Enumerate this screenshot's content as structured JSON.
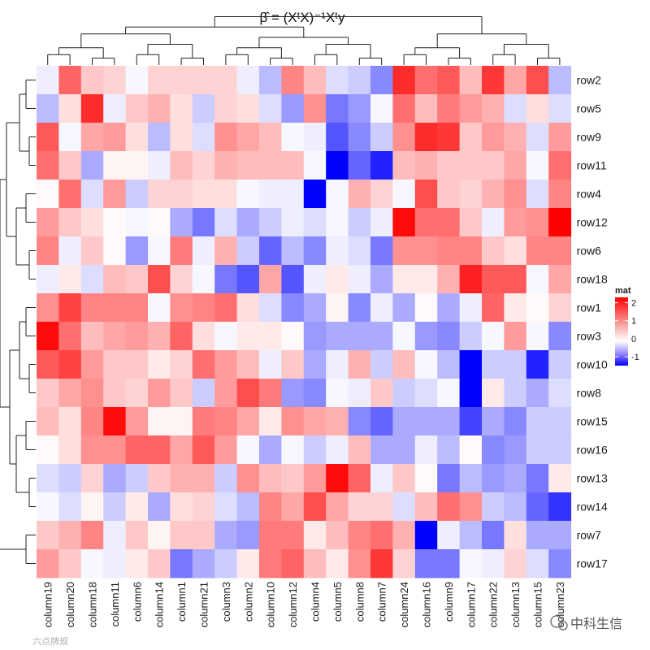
{
  "chart_data": {
    "type": "heatmap",
    "title": "β̂ = (XᵗX)⁻¹Xᵗy",
    "rows": [
      "row2",
      "row5",
      "row9",
      "row11",
      "row4",
      "row12",
      "row6",
      "row18",
      "row1",
      "row3",
      "row10",
      "row8",
      "row15",
      "row16",
      "row13",
      "row14",
      "row7",
      "row17"
    ],
    "columns": [
      "column19",
      "column20",
      "column18",
      "column11",
      "column6",
      "column14",
      "column1",
      "column21",
      "column3",
      "column2",
      "column10",
      "column12",
      "column4",
      "column5",
      "column8",
      "column7",
      "column24",
      "column16",
      "column9",
      "column17",
      "column22",
      "column13",
      "column15",
      "column23"
    ],
    "values": [
      [
        -0.1,
        1.4,
        0.5,
        0.4,
        -0.05,
        0.4,
        0.4,
        0.4,
        0.4,
        -0.1,
        -0.4,
        1.1,
        0.6,
        -0.2,
        -0.3,
        -0.7,
        1.9,
        1.3,
        1.5,
        0.6,
        1.8,
        0.8,
        1.6,
        -0.4
      ],
      [
        -0.4,
        0.3,
        1.9,
        -0.1,
        0.5,
        0.7,
        0.3,
        -0.3,
        0.4,
        0.3,
        -0.2,
        -0.6,
        1.0,
        -0.8,
        -0.6,
        -0.05,
        1.3,
        0.6,
        1.2,
        0.9,
        0.7,
        -0.2,
        0.3,
        -0.2
      ],
      [
        1.5,
        -0.05,
        0.8,
        0.9,
        0.3,
        -0.4,
        0.3,
        -0.2,
        1.0,
        0.8,
        0.6,
        -0.05,
        -0.1,
        -1.0,
        -0.7,
        -0.3,
        1.0,
        1.9,
        1.8,
        0.5,
        0.9,
        0.7,
        -0.2,
        0.9
      ],
      [
        1.3,
        0.5,
        -0.5,
        0.1,
        0.1,
        -0.1,
        0.6,
        0.4,
        0.7,
        0.6,
        0.6,
        0.6,
        -0.05,
        -1.5,
        -0.9,
        -1.3,
        0.6,
        0.7,
        0.5,
        0.5,
        0.5,
        0.8,
        -0.05,
        1.3
      ],
      [
        0.05,
        1.3,
        -0.2,
        0.9,
        -0.3,
        0.4,
        0.4,
        0.3,
        0.3,
        -0.05,
        -0.1,
        -0.1,
        -1.5,
        -0.05,
        0.7,
        0.4,
        -0.05,
        1.6,
        0.5,
        0.4,
        0.7,
        1.0,
        -0.2,
        1.1
      ],
      [
        0.9,
        0.5,
        0.3,
        0.05,
        -0.05,
        0.05,
        -0.5,
        -0.8,
        -0.2,
        -0.5,
        -0.3,
        -0.1,
        -0.2,
        -0.05,
        -0.3,
        -0.1,
        2.2,
        1.3,
        1.3,
        0.5,
        -0.1,
        0.9,
        1.0,
        2.3
      ],
      [
        1.1,
        -0.1,
        0.5,
        0.05,
        -0.6,
        -0.05,
        1.2,
        -0.1,
        0.7,
        -0.3,
        -0.9,
        -0.4,
        -0.7,
        -0.1,
        -0.2,
        -0.8,
        1.0,
        1.0,
        1.1,
        1.1,
        0.5,
        0.3,
        1.1,
        1.1
      ],
      [
        -0.1,
        0.2,
        -0.2,
        0.6,
        0.5,
        1.6,
        0.4,
        -0.05,
        -0.8,
        -1.0,
        0.8,
        -1.0,
        -0.1,
        0.2,
        -0.1,
        -0.5,
        0.2,
        0.2,
        0.7,
        2.0,
        1.5,
        1.5,
        -0.05,
        0.8
      ],
      [
        1.0,
        1.7,
        1.1,
        1.1,
        1.1,
        -0.05,
        1.0,
        1.1,
        1.3,
        0.3,
        -0.2,
        -0.7,
        -0.5,
        0.1,
        -0.7,
        -0.1,
        -0.5,
        0.05,
        -0.5,
        -0.1,
        1.4,
        0.2,
        0.05,
        0.4
      ],
      [
        2.2,
        1.3,
        0.6,
        0.8,
        0.9,
        0.7,
        1.4,
        0.3,
        -0.05,
        0.2,
        0.2,
        0.05,
        -0.6,
        -0.5,
        -0.5,
        -0.5,
        -0.05,
        -0.6,
        -0.7,
        -0.3,
        -0.05,
        0.9,
        -0.05,
        -0.7
      ],
      [
        1.5,
        1.7,
        0.9,
        0.5,
        0.5,
        0.2,
        0.4,
        1.3,
        0.9,
        0.6,
        -0.1,
        0.5,
        -0.5,
        -0.1,
        0.7,
        -0.3,
        0.6,
        -0.05,
        -0.4,
        -1.5,
        -0.3,
        -0.3,
        -1.3,
        -0.3
      ],
      [
        0.5,
        0.8,
        1.0,
        0.5,
        0.4,
        0.9,
        0.5,
        -0.3,
        0.9,
        1.6,
        1.2,
        -0.6,
        -0.7,
        -0.05,
        -0.1,
        0.5,
        -0.3,
        -0.2,
        -0.05,
        -1.5,
        0.2,
        -0.3,
        -0.5,
        -0.2
      ],
      [
        0.6,
        0.3,
        1.1,
        2.2,
        0.9,
        0.1,
        0.1,
        1.2,
        1.1,
        0.8,
        0.2,
        1.0,
        0.8,
        0.7,
        -0.7,
        -0.9,
        -0.5,
        -0.5,
        -0.5,
        -1.1,
        -0.5,
        -0.7,
        -0.3,
        -0.3
      ],
      [
        0.05,
        0.3,
        1.0,
        1.0,
        1.4,
        1.4,
        0.8,
        1.5,
        0.9,
        -0.05,
        -0.5,
        -0.05,
        -0.3,
        -0.1,
        0.6,
        -0.5,
        -0.5,
        -0.1,
        -0.4,
        0.05,
        -0.7,
        -0.6,
        -0.3,
        -0.3
      ],
      [
        -0.2,
        -0.3,
        0.4,
        -0.5,
        -0.3,
        0.5,
        0.7,
        0.7,
        -0.3,
        1.0,
        0.6,
        0.5,
        0.9,
        2.2,
        1.4,
        -0.1,
        0.5,
        0.05,
        -0.8,
        -0.4,
        -0.6,
        -0.5,
        -0.8,
        0.2
      ],
      [
        -0.05,
        -0.2,
        0.1,
        -0.3,
        0.2,
        -0.5,
        0.3,
        0.4,
        -0.2,
        -0.4,
        1.1,
        0.8,
        1.6,
        0.8,
        0.4,
        0.4,
        -0.2,
        0.6,
        1.3,
        1.0,
        -0.3,
        -0.4,
        -0.9,
        -1.2
      ],
      [
        0.5,
        0.7,
        1.1,
        -0.1,
        0.5,
        0.1,
        0.5,
        0.5,
        -0.5,
        -0.6,
        1.2,
        1.2,
        0.2,
        0.6,
        1.1,
        1.3,
        0.7,
        -1.5,
        -0.1,
        -0.4,
        -0.8,
        0.3,
        -0.5,
        -0.5
      ],
      [
        0.9,
        0.5,
        -0.05,
        -0.1,
        0.2,
        0.5,
        -0.8,
        -0.5,
        -0.3,
        0.2,
        1.2,
        1.4,
        0.6,
        0.2,
        1.0,
        1.8,
        0.4,
        -0.8,
        -0.8,
        -0.05,
        -0.1,
        0.4,
        -0.2,
        -0.7
      ]
    ],
    "color_scale": {
      "low": "#0000ff",
      "mid": "#ffffff",
      "high": "#ff0000",
      "domain": [
        -1.5,
        0,
        2.3
      ]
    },
    "legend": {
      "title": "mat",
      "ticks": [
        2,
        1,
        0,
        -1
      ],
      "placement": "right"
    },
    "dendrograms": [
      "left",
      "top"
    ]
  },
  "watermark": {
    "right": "中科生信",
    "left": "六点牌规"
  }
}
